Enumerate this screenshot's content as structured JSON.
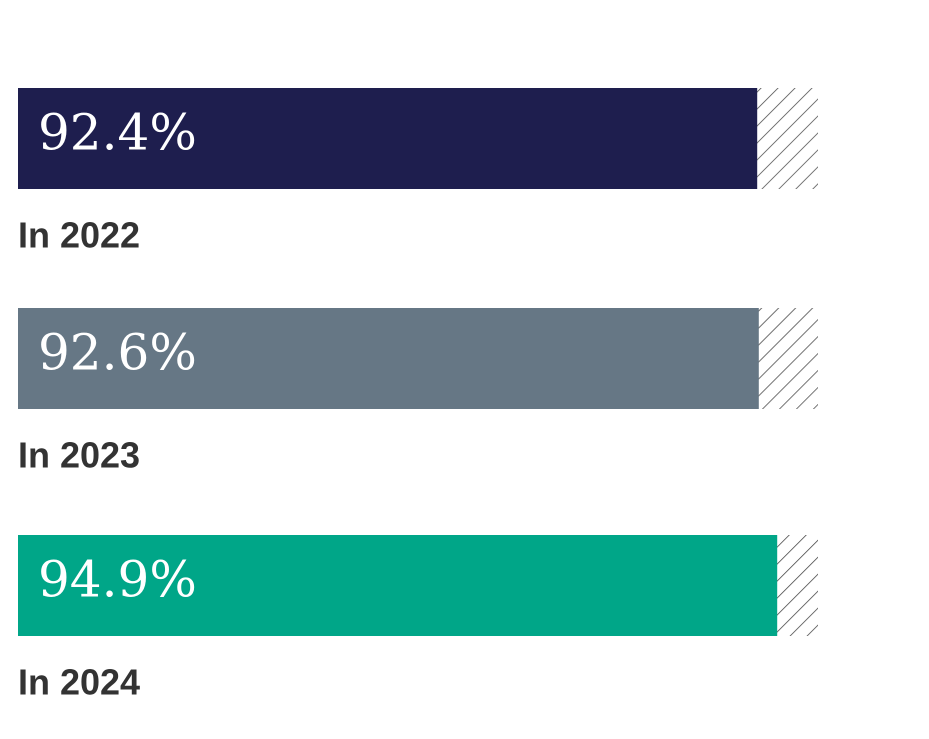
{
  "chart_data": {
    "type": "bar",
    "categories": [
      "In 2022",
      "In 2023",
      "In 2024"
    ],
    "values": [
      92.4,
      92.6,
      94.9
    ],
    "value_labels": [
      "92.4%",
      "92.6%",
      "94.9%"
    ],
    "colors": [
      "#1e1e4e",
      "#667785",
      "#00a688"
    ],
    "xlim": [
      0,
      100
    ]
  }
}
